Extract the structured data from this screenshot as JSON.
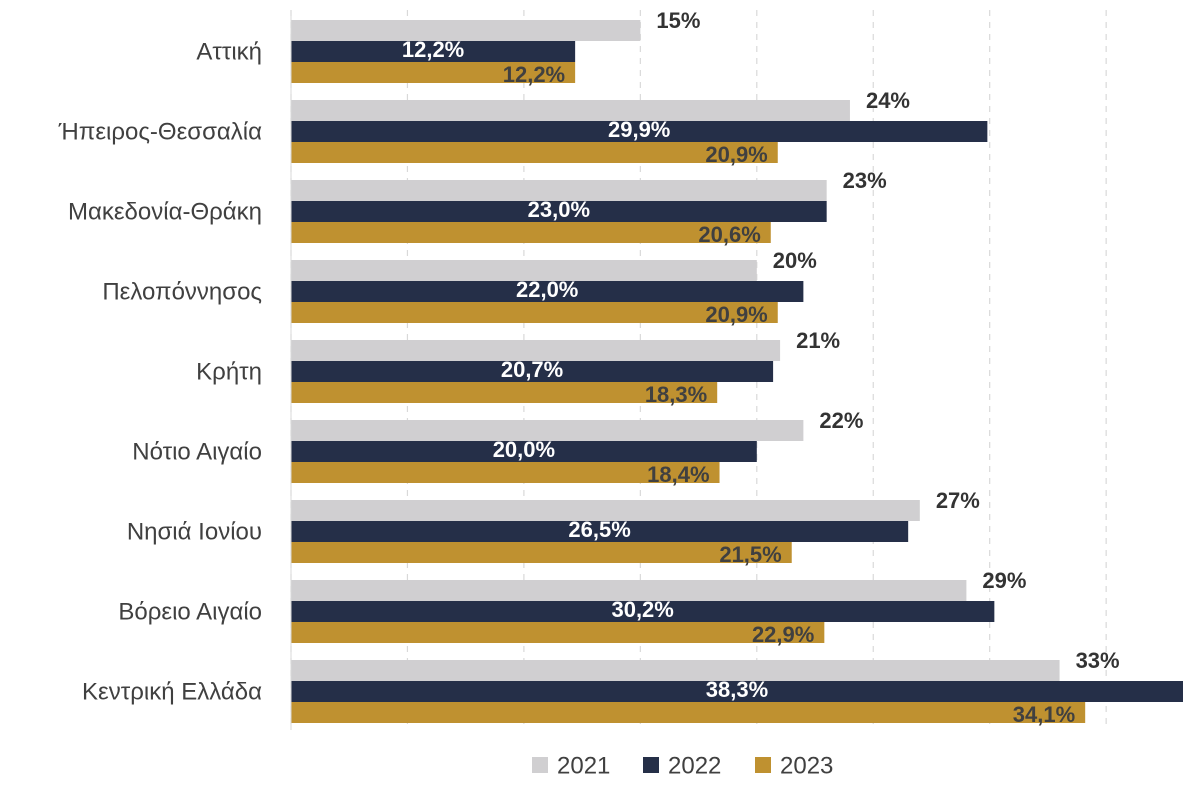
{
  "chart_data": {
    "type": "bar",
    "orientation": "horizontal",
    "categories": [
      "Αττική",
      "Ήπειρος-Θεσσαλία",
      "Μακεδονία-Θράκη",
      "Πελοπόννησος",
      "Κρήτη",
      "Νότιο Αιγαίο",
      "Νησιά Ιονίου",
      "Βόρειο Αιγαίο",
      "Κεντρική Ελλάδα"
    ],
    "series": [
      {
        "name": "2021",
        "color": "#d0cfd1",
        "values": [
          15,
          24,
          23,
          20,
          21,
          22,
          27,
          29,
          33
        ],
        "value_labels": [
          "15%",
          "24%",
          "23%",
          "20%",
          "21%",
          "22%",
          "27%",
          "29%",
          "33%"
        ]
      },
      {
        "name": "2022",
        "color": "#252f48",
        "values": [
          12.2,
          29.9,
          23.0,
          22.0,
          20.7,
          20.0,
          26.5,
          30.2,
          38.3
        ],
        "value_labels": [
          "12,2%",
          "29,9%",
          "23,0%",
          "22,0%",
          "20,7%",
          "20,0%",
          "26,5%",
          "30,2%",
          "38,3%"
        ]
      },
      {
        "name": "2023",
        "color": "#bf9130",
        "values": [
          12.2,
          20.9,
          20.6,
          20.9,
          18.3,
          18.4,
          21.5,
          22.9,
          34.1
        ],
        "value_labels": [
          "12,2%",
          "20,9%",
          "20,6%",
          "20,9%",
          "18,3%",
          "18,4%",
          "21,5%",
          "22,9%",
          "34,1%"
        ]
      }
    ],
    "xlim": [
      0,
      38.3
    ],
    "xticks": [
      0,
      5,
      10,
      15,
      20,
      25,
      30,
      35
    ],
    "grid": true,
    "legend": "bottom"
  }
}
